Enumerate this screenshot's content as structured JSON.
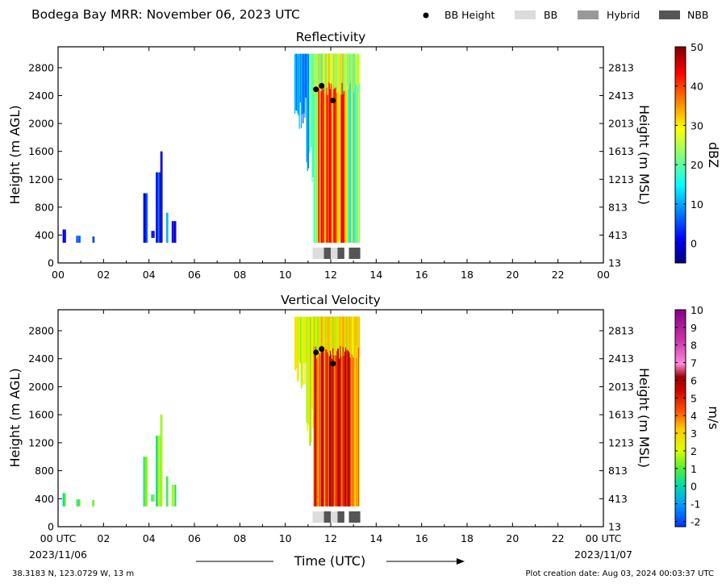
{
  "header": {
    "title": "Bodega Bay MRR:  November 06, 2023 UTC",
    "legend": [
      {
        "label": "BB Height",
        "kind": "dot",
        "color": "#000000"
      },
      {
        "label": "BB",
        "kind": "patch",
        "color": "#dcdcdc"
      },
      {
        "label": "Hybrid",
        "kind": "patch",
        "color": "#999999"
      },
      {
        "label": "NBB",
        "kind": "patch",
        "color": "#555555"
      }
    ]
  },
  "chart_data": [
    {
      "type": "heatmap",
      "title": "Reflectivity",
      "ylabel": "Height (m AGL)",
      "ylabel_right": "Height (m MSL)",
      "yticks": [
        0,
        400,
        800,
        1200,
        1600,
        2000,
        2400,
        2800
      ],
      "yticks_right": [
        "13",
        "413",
        "813",
        "1213",
        "1613",
        "2013",
        "2413",
        "2813"
      ],
      "ylim": [
        0,
        3100
      ],
      "xlim": [
        0,
        24
      ],
      "xticks": [
        "00",
        "02",
        "04",
        "06",
        "08",
        "10",
        "12",
        "14",
        "16",
        "18",
        "20",
        "22",
        "00"
      ],
      "colorbar": {
        "label": "dBZ",
        "range": [
          -5,
          50
        ],
        "ticks": [
          "0",
          "10",
          "20",
          "30",
          "40",
          "50"
        ],
        "tick_values": [
          0,
          10,
          20,
          30,
          40,
          50
        ],
        "colormap": "jet"
      },
      "bb_height": [
        {
          "x": 11.35,
          "y": 2490
        },
        {
          "x": 11.6,
          "y": 2540
        },
        {
          "x": 12.1,
          "y": 2330
        }
      ],
      "bb_type_segments": [
        {
          "start": 11.2,
          "end": 11.7,
          "type": "BB"
        },
        {
          "start": 11.7,
          "end": 12.0,
          "type": "NBB"
        },
        {
          "start": 12.0,
          "end": 12.3,
          "type": "BB"
        },
        {
          "start": 12.3,
          "end": 12.6,
          "type": "NBB"
        },
        {
          "start": 12.8,
          "end": 13.3,
          "type": "NBB"
        }
      ]
    },
    {
      "type": "heatmap",
      "title": "Vertical Velocity",
      "ylabel": "Height (m AGL)",
      "ylabel_right": "Height (m MSL)",
      "xlabel": "Time (UTC)",
      "yticks": [
        0,
        400,
        800,
        1200,
        1600,
        2000,
        2400,
        2800
      ],
      "yticks_right": [
        "13",
        "413",
        "813",
        "1213",
        "1613",
        "2013",
        "2413",
        "2813"
      ],
      "ylim": [
        0,
        3100
      ],
      "xlim": [
        0,
        24
      ],
      "xticks": [
        "00 UTC",
        "02",
        "04",
        "06",
        "08",
        "10",
        "12",
        "14",
        "16",
        "18",
        "20",
        "22",
        "00 UTC"
      ],
      "xdates": {
        "start": "2023/11/06",
        "end": "2023/11/07"
      },
      "colorbar": {
        "label": "m/s",
        "range": [
          -2.3,
          10
        ],
        "ticks": [
          "-2",
          "-1",
          "0",
          "1",
          "2",
          "3",
          "4",
          "5",
          "6",
          "7",
          "8",
          "9",
          "10"
        ],
        "tick_values": [
          -2,
          -1,
          0,
          1,
          2,
          3,
          4,
          5,
          6,
          7,
          8,
          9,
          10
        ],
        "colormap": "velocity"
      },
      "bb_height": [
        {
          "x": 11.35,
          "y": 2490
        },
        {
          "x": 11.6,
          "y": 2540
        },
        {
          "x": 12.1,
          "y": 2330
        }
      ],
      "bb_type_segments": [
        {
          "start": 11.2,
          "end": 11.7,
          "type": "BB"
        },
        {
          "start": 11.7,
          "end": 12.0,
          "type": "NBB"
        },
        {
          "start": 12.0,
          "end": 12.3,
          "type": "BB"
        },
        {
          "start": 12.3,
          "end": 12.6,
          "type": "NBB"
        },
        {
          "start": 12.8,
          "end": 13.3,
          "type": "NBB"
        }
      ]
    }
  ],
  "footer": {
    "location": "38.3183 N, 123.0729 W, 13 m",
    "creation": "Plot creation date: Aug 03, 2024 00:03:37 UTC"
  }
}
